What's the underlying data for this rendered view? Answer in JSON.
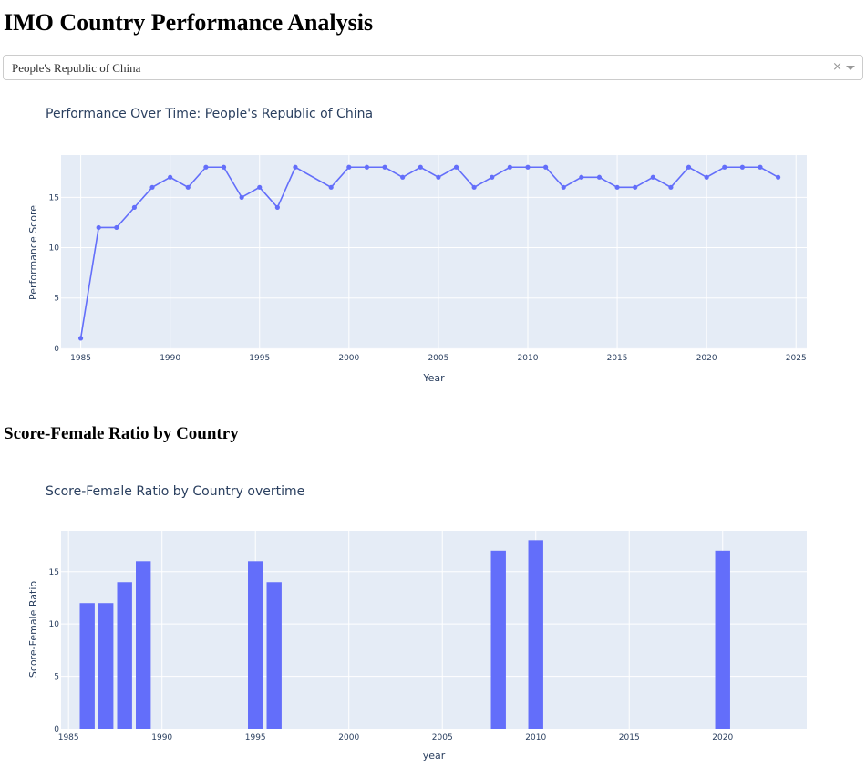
{
  "header": {
    "title": "IMO Country Performance Analysis"
  },
  "country_select": {
    "value": "People's Republic of China",
    "clear_icon": "×",
    "arrow_icon": "chevron-down-icon"
  },
  "section": {
    "title": "Score-Female Ratio by Country"
  },
  "colors": {
    "accent": "#636efa",
    "plot_bg": "#e5ecf6",
    "grid": "#ffffff",
    "text": "#2a3f5f"
  },
  "chart_data": [
    {
      "type": "line",
      "title": "Performance Over Time: People's Republic of China",
      "xlabel": "Year",
      "ylabel": "Performance Score",
      "xlim": [
        1983.9,
        2025.6
      ],
      "ylim": [
        -0.1,
        19.2
      ],
      "xticks": [
        1985,
        1990,
        1995,
        2000,
        2005,
        2010,
        2015,
        2020,
        2025
      ],
      "yticks": [
        0,
        5,
        10,
        15
      ],
      "grid": true,
      "x": [
        1985,
        1986,
        1987,
        1988,
        1989,
        1990,
        1991,
        1992,
        1993,
        1994,
        1995,
        1996,
        1997,
        1999,
        2000,
        2001,
        2002,
        2003,
        2004,
        2005,
        2006,
        2007,
        2008,
        2009,
        2010,
        2011,
        2012,
        2013,
        2014,
        2015,
        2016,
        2017,
        2018,
        2019,
        2020,
        2021,
        2022,
        2023,
        2024
      ],
      "y": [
        1,
        12,
        12,
        14,
        16,
        17,
        16,
        18,
        18,
        15,
        16,
        14,
        18,
        16,
        18,
        18,
        18,
        17,
        18,
        17,
        18,
        16,
        17,
        18,
        18,
        18,
        16,
        17,
        17,
        16,
        16,
        17,
        16,
        18,
        17,
        18,
        18,
        18,
        17
      ]
    },
    {
      "type": "bar",
      "title": "Score-Female Ratio by Country overtime",
      "xlabel": "year",
      "ylabel": "Score-Female Ratio",
      "xlim": [
        1984.6,
        2024.5
      ],
      "ylim": [
        0,
        18.9
      ],
      "xticks": [
        1985,
        1990,
        1995,
        2000,
        2005,
        2010,
        2015,
        2020
      ],
      "yticks": [
        0,
        5,
        10,
        15
      ],
      "grid": true,
      "x": [
        1986,
        1987,
        1988,
        1989,
        1995,
        1996,
        2008,
        2010,
        2020
      ],
      "y": [
        12,
        12,
        14,
        16,
        16,
        14,
        17,
        18,
        17
      ]
    }
  ]
}
